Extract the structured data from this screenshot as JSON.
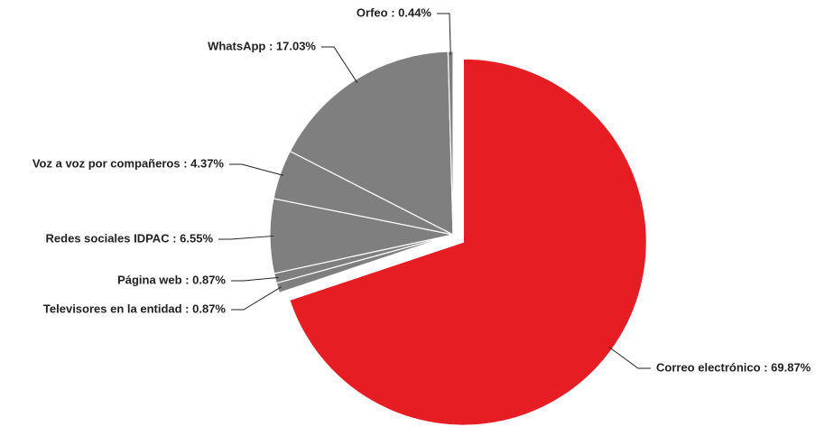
{
  "chart_data": {
    "type": "pie",
    "categories": [
      "Correo electrónico",
      "Televisores en la entidad",
      "Página web",
      "Redes sociales IDPAC",
      "Voz a voz por compañeros",
      "WhatsApp",
      "Orfeo"
    ],
    "values": [
      69.87,
      0.87,
      0.87,
      6.55,
      4.37,
      17.03,
      0.44
    ],
    "value_labels": [
      "Correo electrónico : 69.87%",
      "Televisores en la entidad : 0.87%",
      "Página web : 0.87%",
      "Redes sociales IDPAC : 6.55%",
      "Voz a voz por compañeros : 4.37%",
      "WhatsApp : 17.03%",
      "Orfeo : 0.44%"
    ],
    "colors": [
      "#e71d24",
      "#7f7f7f",
      "#7f7f7f",
      "#7f7f7f",
      "#7f7f7f",
      "#7f7f7f",
      "#7f7f7f"
    ],
    "exploded": [
      0
    ]
  }
}
